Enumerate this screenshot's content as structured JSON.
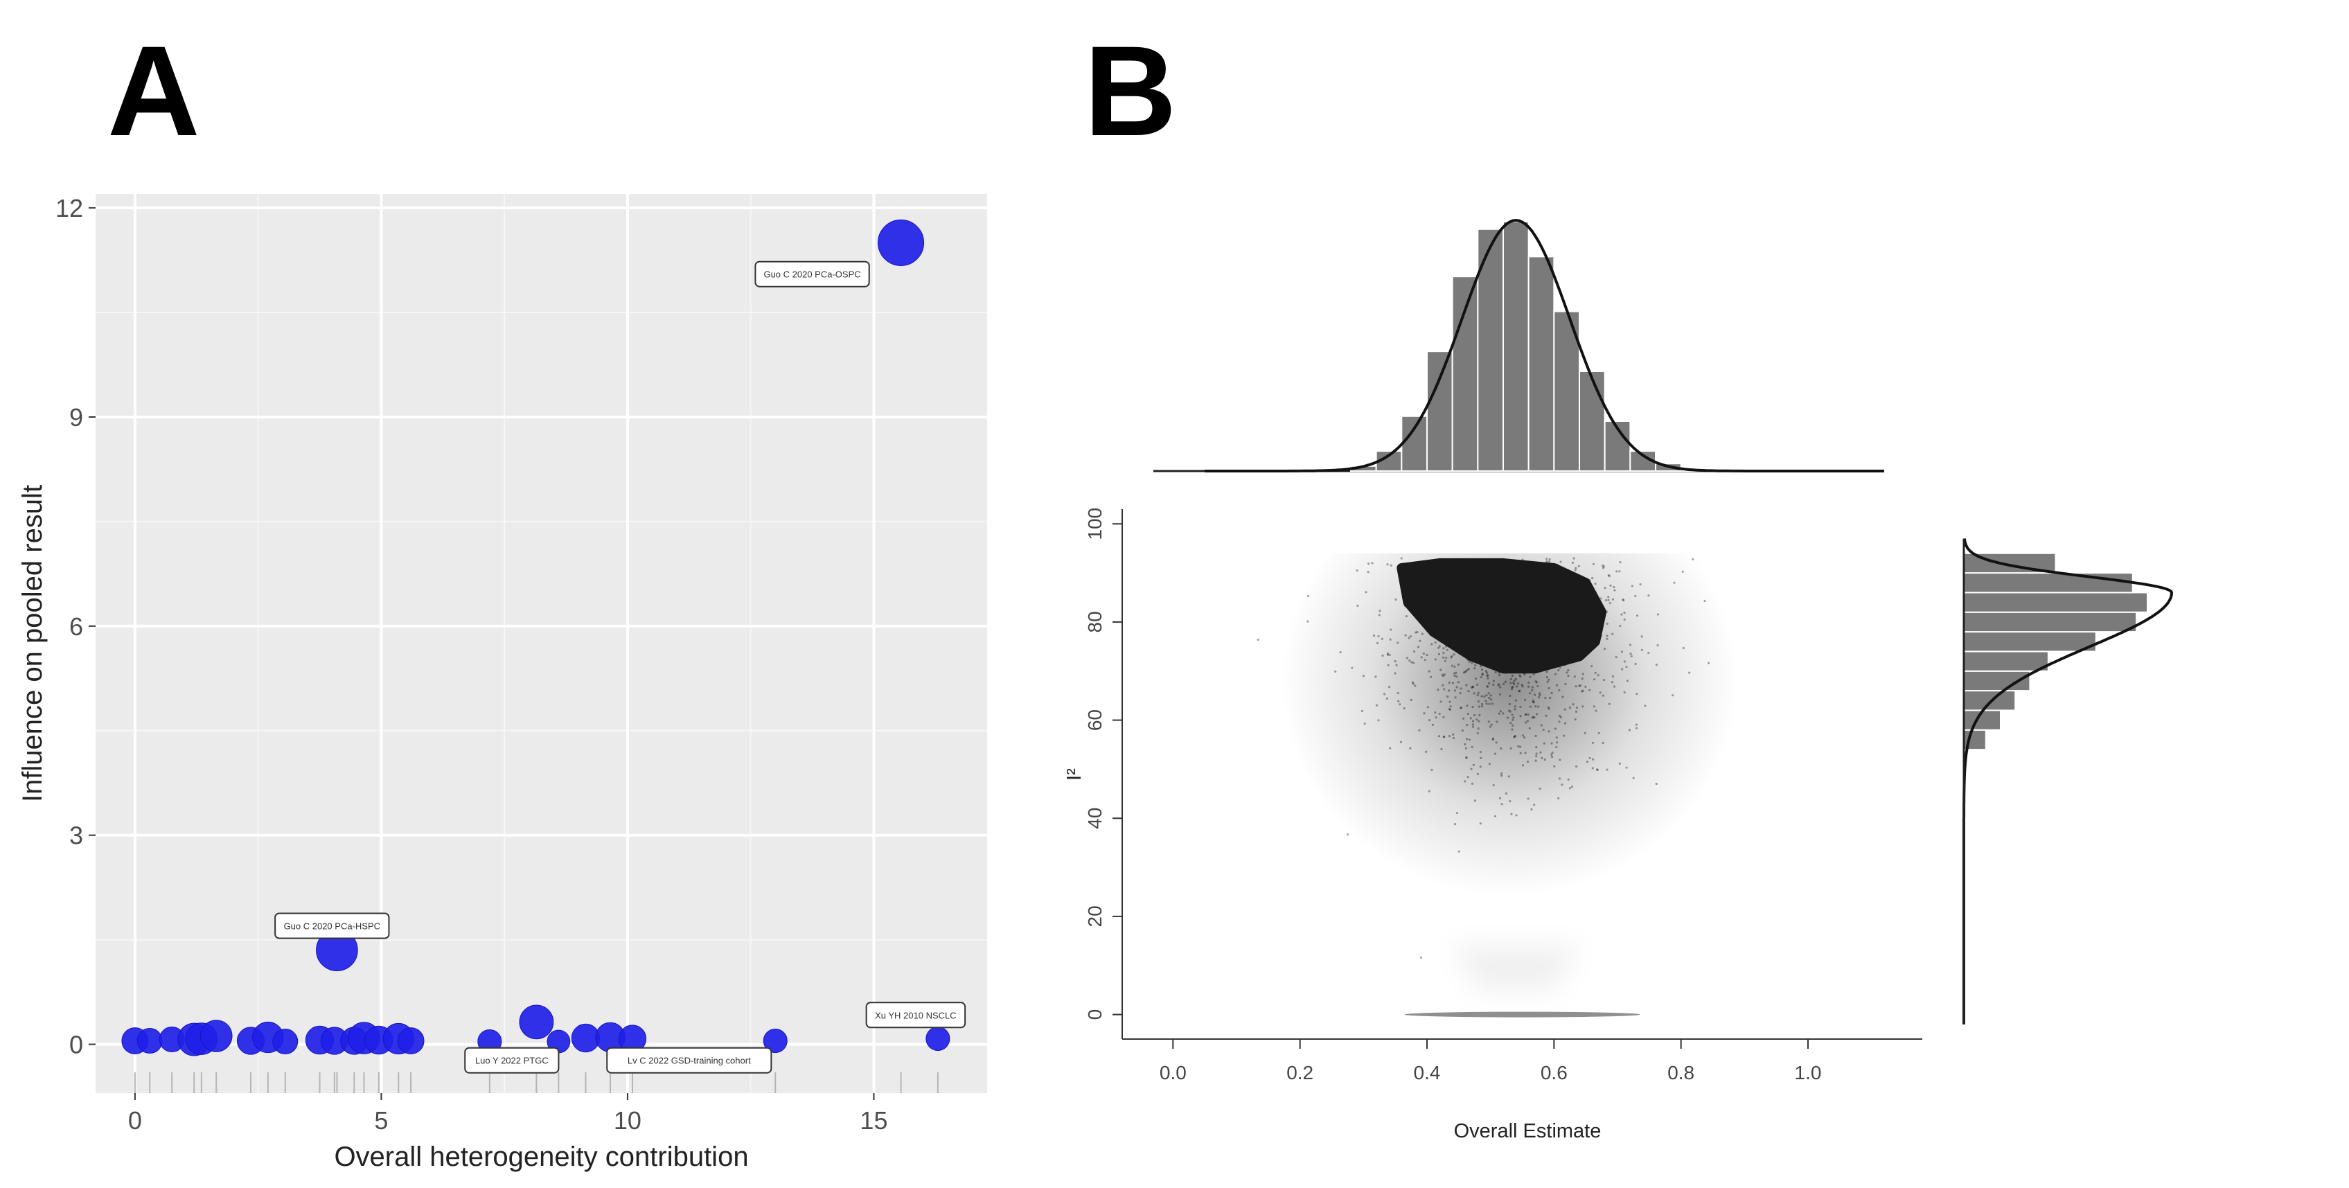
{
  "panels": {
    "a_label": "A",
    "b_label": "B"
  },
  "chart_data": [
    {
      "id": "A",
      "type": "scatter",
      "title": "",
      "xlabel": "Overall heterogeneity contribution",
      "ylabel": "Influence on pooled result",
      "xlim": [
        -0.8,
        17.3
      ],
      "ylim": [
        -0.7,
        12.2
      ],
      "xticks": [
        0,
        5,
        10,
        15
      ],
      "yticks": [
        0,
        3,
        6,
        9,
        12
      ],
      "grid": true,
      "rug": true,
      "point_color": "#1f1fe8",
      "points": [
        {
          "x": 0.0,
          "y": 0.05,
          "s": 0.28
        },
        {
          "x": 0.3,
          "y": 0.05,
          "s": 0.25
        },
        {
          "x": 0.75,
          "y": 0.07,
          "s": 0.25
        },
        {
          "x": 1.2,
          "y": 0.07,
          "s": 0.42
        },
        {
          "x": 1.35,
          "y": 0.08,
          "s": 0.4
        },
        {
          "x": 1.65,
          "y": 0.12,
          "s": 0.4
        },
        {
          "x": 2.35,
          "y": 0.05,
          "s": 0.3
        },
        {
          "x": 2.7,
          "y": 0.1,
          "s": 0.38
        },
        {
          "x": 3.05,
          "y": 0.04,
          "s": 0.25
        },
        {
          "x": 3.75,
          "y": 0.06,
          "s": 0.32
        },
        {
          "x": 4.05,
          "y": 0.05,
          "s": 0.3
        },
        {
          "x": 4.1,
          "y": 1.35,
          "s": 0.62
        },
        {
          "x": 4.45,
          "y": 0.05,
          "s": 0.3
        },
        {
          "x": 4.65,
          "y": 0.09,
          "s": 0.4
        },
        {
          "x": 4.95,
          "y": 0.06,
          "s": 0.32
        },
        {
          "x": 5.35,
          "y": 0.08,
          "s": 0.38
        },
        {
          "x": 5.6,
          "y": 0.05,
          "s": 0.28
        },
        {
          "x": 7.2,
          "y": 0.04,
          "s": 0.22
        },
        {
          "x": 8.15,
          "y": 0.32,
          "s": 0.45
        },
        {
          "x": 8.6,
          "y": 0.04,
          "s": 0.2
        },
        {
          "x": 9.15,
          "y": 0.09,
          "s": 0.32
        },
        {
          "x": 9.65,
          "y": 0.1,
          "s": 0.35
        },
        {
          "x": 10.1,
          "y": 0.08,
          "s": 0.3
        },
        {
          "x": 13.0,
          "y": 0.05,
          "s": 0.22
        },
        {
          "x": 15.55,
          "y": 11.5,
          "s": 0.72
        },
        {
          "x": 16.3,
          "y": 0.08,
          "s": 0.22
        }
      ],
      "annotations": [
        {
          "text": "Guo C 2020 PCa-OSPC",
          "x": 13.75,
          "y": 11.05
        },
        {
          "text": "Guo C 2020 PCa-HSPC",
          "x": 4.0,
          "y": 1.7
        },
        {
          "text": "Xu YH 2010 NSCLC",
          "x": 15.85,
          "y": 0.42
        },
        {
          "text": "Luo Y 2022 PTGC",
          "x": 7.65,
          "y": -0.23
        },
        {
          "text": "Lv C 2022 GSD-training cohort",
          "x": 11.25,
          "y": -0.23
        }
      ]
    },
    {
      "id": "B",
      "type": "scatter",
      "title": "",
      "xlabel": "Overall Estimate",
      "ylabel": "I²",
      "xlim": [
        -0.08,
        1.18
      ],
      "ylim": [
        -5,
        103
      ],
      "xticks": [
        0.0,
        0.2,
        0.4,
        0.6,
        0.8,
        1.0
      ],
      "xtick_labels": [
        "0.0",
        "0.2",
        "0.4",
        "0.6",
        "0.8",
        "1.0"
      ],
      "yticks": [
        0,
        20,
        40,
        60,
        80,
        100
      ],
      "description_of_density": "dense core centered near estimate 0.52 and I² 83, sparse tail down to I² 0",
      "marginal_top": {
        "type": "histogram",
        "bin_edges": [
          0.28,
          0.32,
          0.36,
          0.4,
          0.44,
          0.48,
          0.52,
          0.56,
          0.6,
          0.64,
          0.68,
          0.72,
          0.76,
          0.8,
          0.84
        ],
        "counts": [
          2,
          8,
          22,
          48,
          78,
          97,
          100,
          86,
          64,
          40,
          20,
          8,
          3,
          1
        ],
        "density_peak": 0.54
      },
      "marginal_right": {
        "type": "histogram",
        "bin_edges": [
          54,
          58,
          62,
          66,
          70,
          74,
          78,
          82,
          86,
          90,
          94
        ],
        "counts": [
          12,
          20,
          28,
          36,
          46,
          72,
          94,
          100,
          92,
          50
        ],
        "density_peak": 85
      }
    }
  ]
}
